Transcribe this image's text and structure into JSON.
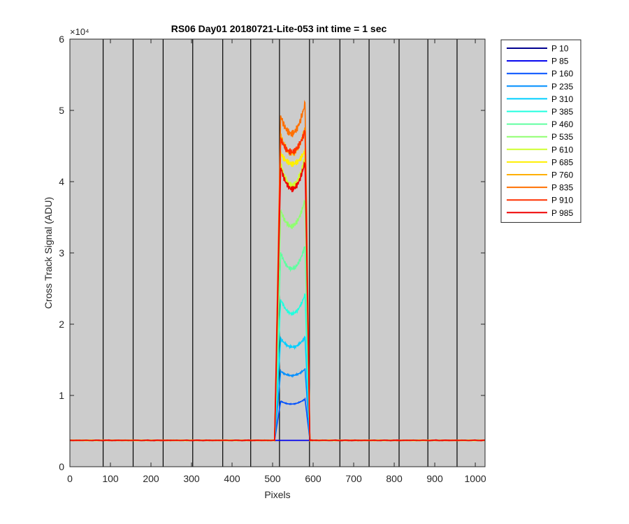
{
  "chart_data": {
    "type": "line",
    "title": "RS06 Day01 20180721-Lite-053 int time = 1 sec",
    "xlabel": "Pixels",
    "ylabel": "Cross Track Signal (ADU)",
    "xlim": [
      0,
      1024
    ],
    "ylim": [
      0,
      60000
    ],
    "y_exponent_label": "×10⁴",
    "x_ticks": [
      0,
      100,
      200,
      300,
      400,
      500,
      600,
      700,
      800,
      900,
      1000
    ],
    "y_ticks": [
      0,
      1,
      2,
      3,
      4,
      5,
      6
    ],
    "x_tick_labels": [
      "0",
      "100",
      "200",
      "300",
      "400",
      "500",
      "600",
      "700",
      "800",
      "900",
      "1000"
    ],
    "y_tick_labels": [
      "0",
      "1",
      "2",
      "3",
      "4",
      "5",
      "6"
    ],
    "vertical_lines_x": [
      82,
      156,
      230,
      303,
      377,
      446,
      517,
      591,
      666,
      738,
      812,
      883,
      955
    ],
    "background_color": "#cccccc",
    "legend_position": "outside-top-right",
    "baseline": 3700,
    "peak_region": {
      "rise_start": 505,
      "rise_end": 520,
      "fall_start": 580,
      "fall_end": 592
    },
    "series": [
      {
        "name": "P 10",
        "color": "#00008f",
        "peak_left": 3700,
        "dip": 3700,
        "peak_right": 3700
      },
      {
        "name": "P 85",
        "color": "#0000ef",
        "peak_left": 3700,
        "dip": 3700,
        "peak_right": 3700
      },
      {
        "name": "P 160",
        "color": "#0050ff",
        "peak_left": 9200,
        "dip": 8800,
        "peak_right": 9500
      },
      {
        "name": "P 235",
        "color": "#008fff",
        "peak_left": 13400,
        "dip": 12800,
        "peak_right": 13700
      },
      {
        "name": "P 310",
        "color": "#00cfff",
        "peak_left": 18000,
        "dip": 16800,
        "peak_right": 18200
      },
      {
        "name": "P 385",
        "color": "#1fffdf",
        "peak_left": 23500,
        "dip": 21500,
        "peak_right": 24200
      },
      {
        "name": "P 460",
        "color": "#60ffa0",
        "peak_left": 30000,
        "dip": 27800,
        "peak_right": 31000
      },
      {
        "name": "P 535",
        "color": "#8fff70",
        "peak_left": 36000,
        "dip": 33800,
        "peak_right": 37500
      },
      {
        "name": "P 610",
        "color": "#cfff30",
        "peak_left": 42500,
        "dip": 39500,
        "peak_right": 43500
      },
      {
        "name": "P 685",
        "color": "#ffef00",
        "peak_left": 44000,
        "dip": 42500,
        "peak_right": 44300
      },
      {
        "name": "P 760",
        "color": "#ffaf00",
        "peak_left": 46500,
        "dip": 44000,
        "peak_right": 47500
      },
      {
        "name": "P 835",
        "color": "#ff7000",
        "peak_left": 49300,
        "dip": 46800,
        "peak_right": 51000
      },
      {
        "name": "P 910",
        "color": "#ff3000",
        "peak_left": 46000,
        "dip": 44200,
        "peak_right": 47200
      },
      {
        "name": "P 985",
        "color": "#ef0000",
        "peak_left": 42000,
        "dip": 39000,
        "peak_right": 42800
      }
    ]
  }
}
